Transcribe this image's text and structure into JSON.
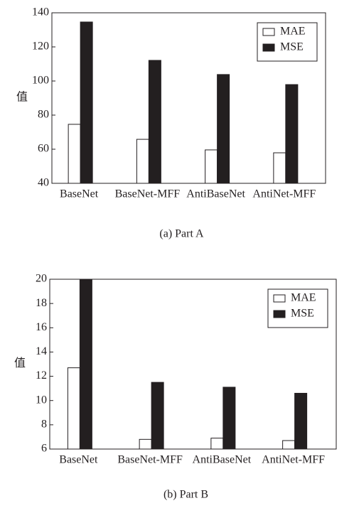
{
  "chart_data": [
    {
      "type": "bar",
      "y_label": "值",
      "caption": "(a) Part A",
      "categories": [
        "BaseNet",
        "BaseNet-MFF",
        "AntiBaseNet",
        "AntiNet-MFF"
      ],
      "series": [
        {
          "name": "MAE",
          "color": "#ffffff",
          "values": [
            74.6,
            65.8,
            59.6,
            57.9
          ]
        },
        {
          "name": "MSE",
          "color": "#231f20",
          "values": [
            134.6,
            112.1,
            103.8,
            97.9
          ]
        }
      ],
      "ylim": [
        40,
        140
      ],
      "yticks": [
        40,
        60,
        80,
        100,
        120,
        140
      ],
      "legend": "upper right"
    },
    {
      "type": "bar",
      "y_label": "值",
      "caption": "(b) Part B",
      "categories": [
        "BaseNet",
        "BaseNet-MFF",
        "AntiBaseNet",
        "AntiNet-MFF"
      ],
      "series": [
        {
          "name": "MAE",
          "color": "#ffffff",
          "values": [
            12.7,
            6.8,
            6.9,
            6.7
          ]
        },
        {
          "name": "MSE",
          "color": "#231f20",
          "values": [
            20,
            11.5,
            11.1,
            10.6
          ]
        }
      ],
      "ylim": [
        6,
        20
      ],
      "yticks": [
        6,
        8,
        10,
        12,
        14,
        16,
        18,
        20
      ],
      "legend": "upper right"
    }
  ]
}
